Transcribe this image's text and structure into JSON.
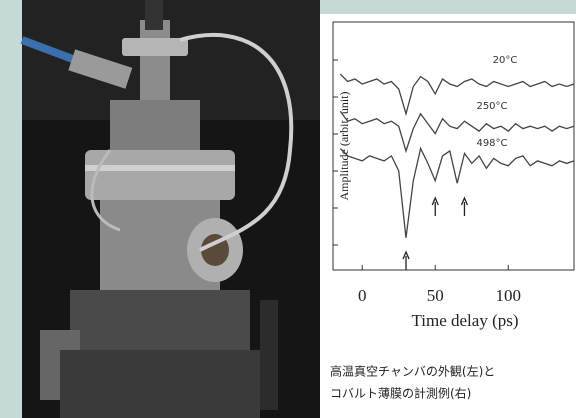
{
  "caption": [
    "高温真空チャンバの外観(左)と",
    "コバルト薄膜の計測例(右)"
  ],
  "chart_data": {
    "type": "line",
    "xlabel": "Time delay (ps)",
    "ylabel": "Amplitude (arbit. unit)",
    "x": [
      -15,
      -10,
      -5,
      0,
      5,
      10,
      15,
      20,
      25,
      30,
      35,
      40,
      45,
      50,
      55,
      60,
      65,
      70,
      75,
      80,
      85,
      90,
      95,
      100,
      105,
      110,
      115,
      120,
      125,
      130,
      135,
      140,
      145
    ],
    "series": [
      {
        "name": "20°C",
        "color": "#444444",
        "values": [
          7.9,
          7.6,
          7.7,
          7.5,
          7.6,
          7.7,
          7.5,
          7.6,
          7.3,
          6.3,
          7.4,
          7.8,
          7.6,
          7.1,
          7.7,
          7.5,
          7.4,
          7.6,
          7.7,
          7.5,
          7.4,
          7.6,
          7.5,
          7.4,
          7.5,
          7.6,
          7.4,
          7.5,
          7.6,
          7.4,
          7.5,
          7.4,
          7.5
        ]
      },
      {
        "name": "250°C",
        "color": "#444444",
        "values": [
          6.4,
          6.0,
          6.1,
          5.9,
          6.0,
          6.1,
          5.9,
          6.0,
          5.8,
          4.8,
          5.7,
          6.3,
          5.9,
          5.5,
          6.1,
          5.8,
          5.7,
          6.0,
          5.8,
          5.6,
          5.9,
          5.7,
          5.8,
          5.6,
          5.9,
          5.7,
          5.8,
          5.7,
          5.8,
          5.6,
          5.8,
          5.7,
          5.8
        ]
      },
      {
        "name": "498°C",
        "color": "#444444",
        "values": [
          4.9,
          4.6,
          4.5,
          4.4,
          4.6,
          4.5,
          4.4,
          4.6,
          4.0,
          1.3,
          3.6,
          4.9,
          4.3,
          3.6,
          4.6,
          4.8,
          3.5,
          4.7,
          4.3,
          4.6,
          4.1,
          4.5,
          4.3,
          4.2,
          4.5,
          4.6,
          4.2,
          4.4,
          4.3,
          4.2,
          4.4,
          4.3,
          4.4
        ]
      }
    ],
    "arrows_x": [
      30,
      50,
      70
    ],
    "xlim": [
      -20,
      145
    ],
    "ylim": [
      0,
      10
    ],
    "xticks": [
      0,
      50,
      100
    ]
  }
}
